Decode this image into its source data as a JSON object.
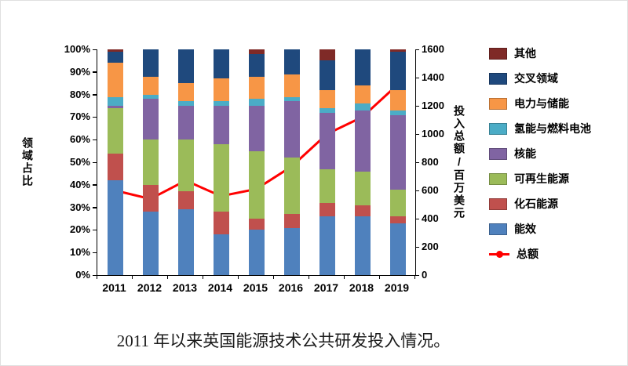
{
  "caption": "2011 年以来英国能源技术公共研发投入情况。",
  "axes": {
    "left_title": "领域占比",
    "right_title": "投入总额/百万美元"
  },
  "chart_data": {
    "type": "bar",
    "subtype": "stacked-100-percent-with-total-line",
    "title": "2011 年以来英国能源技术公共研发投入情况",
    "categories": [
      "2011",
      "2012",
      "2013",
      "2014",
      "2015",
      "2016",
      "2017",
      "2018",
      "2019"
    ],
    "series": [
      {
        "name": "能效",
        "color": "#4f81bd",
        "values": [
          42,
          28,
          29,
          18,
          20,
          21,
          26,
          26,
          23
        ]
      },
      {
        "name": "化石能源",
        "color": "#c0504d",
        "values": [
          12,
          12,
          8,
          10,
          5,
          6,
          6,
          5,
          3
        ]
      },
      {
        "name": "可再生能源",
        "color": "#9bbb59",
        "values": [
          20,
          20,
          23,
          30,
          30,
          25,
          15,
          15,
          12
        ]
      },
      {
        "name": "核能",
        "color": "#8064a2",
        "values": [
          1,
          18,
          15,
          17,
          20,
          25,
          25,
          27,
          33
        ]
      },
      {
        "name": "氢能与燃料电池",
        "color": "#4bacc6",
        "values": [
          4,
          2,
          2,
          2,
          3,
          2,
          2,
          3,
          2
        ]
      },
      {
        "name": "电力与储能",
        "color": "#f79646",
        "values": [
          15,
          8,
          8,
          10,
          10,
          10,
          8,
          8,
          9
        ]
      },
      {
        "name": "交叉领域",
        "color": "#1f497d",
        "values": [
          5,
          12,
          15,
          13,
          10,
          11,
          13,
          16,
          17
        ]
      },
      {
        "name": "其他",
        "color": "#7f2a27",
        "values": [
          1,
          0,
          0,
          0,
          2,
          0,
          5,
          0,
          1
        ]
      }
    ],
    "line_series": {
      "name": "总额",
      "color": "#ff0000",
      "values": [
        600,
        540,
        670,
        560,
        610,
        770,
        1000,
        1120,
        1350
      ]
    },
    "left_axis": {
      "label": "领域占比",
      "min": 0,
      "max": 100,
      "ticks": [
        "0%",
        "10%",
        "20%",
        "30%",
        "40%",
        "50%",
        "60%",
        "70%",
        "80%",
        "90%",
        "100%"
      ]
    },
    "right_axis": {
      "label": "投入总额/百万美元",
      "min": 0,
      "max": 1600,
      "ticks": [
        "0",
        "200",
        "400",
        "600",
        "800",
        "1000",
        "1200",
        "1400",
        "1600"
      ]
    },
    "legend_position": "right",
    "grid": false
  }
}
